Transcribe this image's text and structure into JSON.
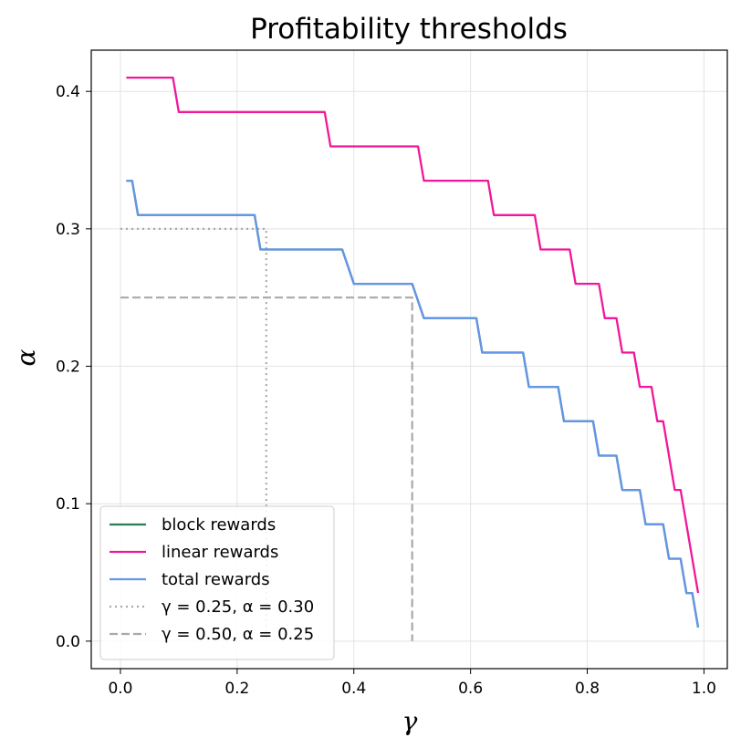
{
  "chart_data": {
    "type": "line",
    "title": "Profitability thresholds",
    "xlabel": "γ",
    "ylabel": "α",
    "xlim": [
      -0.05,
      1.04
    ],
    "ylim": [
      -0.02,
      0.43
    ],
    "xticks": [
      0.0,
      0.2,
      0.4,
      0.6,
      0.8,
      1.0
    ],
    "xtick_labels": [
      "0.0",
      "0.2",
      "0.4",
      "0.6",
      "0.8",
      "1.0"
    ],
    "yticks": [
      0.0,
      0.1,
      0.2,
      0.3,
      0.4
    ],
    "ytick_labels": [
      "0.0",
      "0.1",
      "0.2",
      "0.3",
      "0.4"
    ],
    "grid": true,
    "legend_position": "lower-left",
    "series": [
      {
        "name": "block rewards",
        "color": "#2e7d4f",
        "style": "solid",
        "x": [
          0.01,
          0.02,
          0.03,
          0.23,
          0.24,
          0.38,
          0.4,
          0.5,
          0.52,
          0.61,
          0.62,
          0.69,
          0.7,
          0.75,
          0.76,
          0.81,
          0.82,
          0.85,
          0.86,
          0.89,
          0.9,
          0.93,
          0.94,
          0.96,
          0.97,
          0.98,
          0.99
        ],
        "y": [
          0.335,
          0.335,
          0.31,
          0.31,
          0.285,
          0.285,
          0.26,
          0.26,
          0.235,
          0.235,
          0.21,
          0.21,
          0.185,
          0.185,
          0.16,
          0.16,
          0.135,
          0.135,
          0.11,
          0.11,
          0.085,
          0.085,
          0.06,
          0.06,
          0.035,
          0.035,
          0.01
        ]
      },
      {
        "name": "linear rewards",
        "color": "#f0189a",
        "style": "solid",
        "x": [
          0.01,
          0.09,
          0.1,
          0.35,
          0.36,
          0.51,
          0.52,
          0.63,
          0.64,
          0.71,
          0.72,
          0.77,
          0.78,
          0.82,
          0.83,
          0.85,
          0.86,
          0.88,
          0.89,
          0.91,
          0.92,
          0.93,
          0.95,
          0.96,
          0.99
        ],
        "y": [
          0.41,
          0.41,
          0.385,
          0.385,
          0.36,
          0.36,
          0.335,
          0.335,
          0.31,
          0.31,
          0.285,
          0.285,
          0.26,
          0.26,
          0.235,
          0.235,
          0.21,
          0.21,
          0.185,
          0.185,
          0.16,
          0.16,
          0.11,
          0.11,
          0.035
        ]
      },
      {
        "name": "total rewards",
        "color": "#6495e6",
        "style": "solid",
        "x": [
          0.01,
          0.02,
          0.03,
          0.23,
          0.24,
          0.38,
          0.4,
          0.5,
          0.52,
          0.61,
          0.62,
          0.69,
          0.7,
          0.75,
          0.76,
          0.81,
          0.82,
          0.85,
          0.86,
          0.89,
          0.9,
          0.93,
          0.94,
          0.96,
          0.97,
          0.98,
          0.99
        ],
        "y": [
          0.335,
          0.335,
          0.31,
          0.31,
          0.285,
          0.285,
          0.26,
          0.26,
          0.235,
          0.235,
          0.21,
          0.21,
          0.185,
          0.185,
          0.16,
          0.16,
          0.135,
          0.135,
          0.11,
          0.11,
          0.085,
          0.085,
          0.06,
          0.06,
          0.035,
          0.035,
          0.01
        ]
      }
    ],
    "reference_lines": [
      {
        "name": "γ = 0.25, α = 0.30",
        "color": "#a9a9a9",
        "style": "dotted",
        "x": [
          0.0,
          0.25,
          0.25
        ],
        "y": [
          0.3,
          0.3,
          0.0
        ]
      },
      {
        "name": "γ = 0.50, α = 0.25",
        "color": "#a9a9a9",
        "style": "dashed",
        "x": [
          0.0,
          0.5,
          0.5
        ],
        "y": [
          0.25,
          0.25,
          0.0
        ]
      }
    ]
  }
}
